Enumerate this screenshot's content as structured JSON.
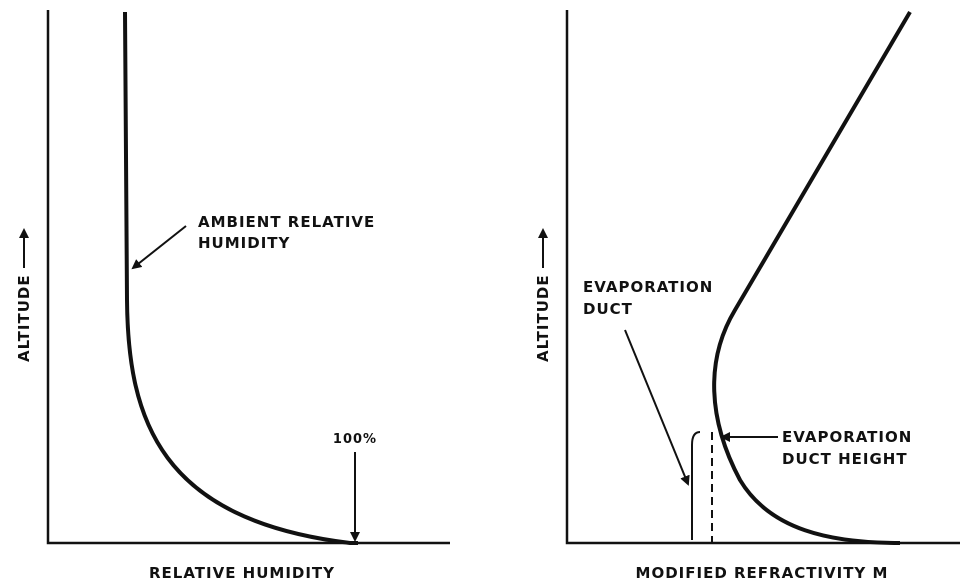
{
  "left_panel": {
    "y_label": "ALTITUDE",
    "x_label": "RELATIVE HUMIDITY",
    "curve_label": [
      "AMBIENT RELATIVE",
      "HUMIDITY"
    ],
    "marker_label": "100%"
  },
  "right_panel": {
    "y_label": "ALTITUDE",
    "x_label": "MODIFIED REFRACTIVITY M",
    "duct_label": [
      "EVAPORATION",
      "DUCT"
    ],
    "height_label": [
      "EVAPORATION",
      "DUCT HEIGHT"
    ]
  }
}
